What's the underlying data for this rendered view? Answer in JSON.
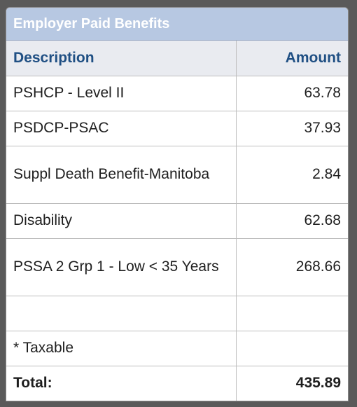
{
  "panel": {
    "title": "Employer Paid Benefits"
  },
  "table": {
    "headers": {
      "description": "Description",
      "amount": "Amount"
    },
    "rows": [
      {
        "description": "PSHCP - Level II",
        "amount": "63.78"
      },
      {
        "description": "PSDCP-PSAC",
        "amount": "37.93"
      },
      {
        "description": "Suppl Death Benefit-Manitoba",
        "amount": "2.84"
      },
      {
        "description": "Disability",
        "amount": "62.68"
      },
      {
        "description": "PSSA 2 Grp 1 - Low < 35 Years",
        "amount": "268.66"
      },
      {
        "description": "",
        "amount": ""
      },
      {
        "description": "* Taxable",
        "amount": ""
      }
    ],
    "total": {
      "label": "Total:",
      "amount": "435.89"
    }
  }
}
